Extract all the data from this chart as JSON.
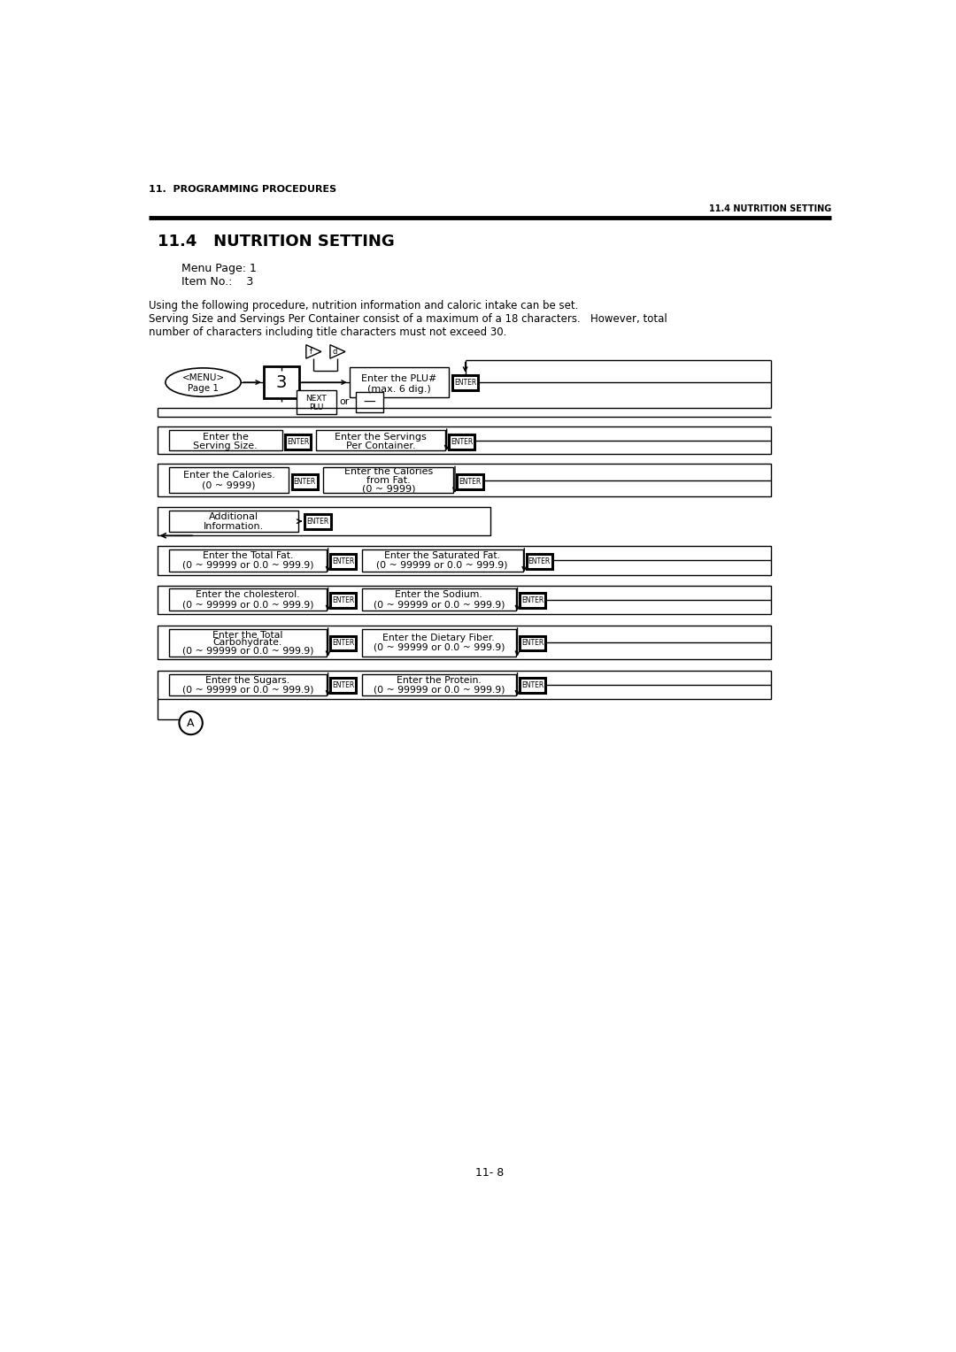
{
  "page_header_left": "11.  PROGRAMMING PROCEDURES",
  "page_header_right": "11.4 NUTRITION SETTING",
  "section_title": "11.4   NUTRITION SETTING",
  "menu_page": "Menu Page: 1",
  "item_no": "Item No.:    3",
  "description_line1": "Using the following procedure, nutrition information and caloric intake can be set.",
  "description_line2": "Serving Size and Servings Per Container consist of a maximum of a 18 characters.   However, total",
  "description_line3": "number of characters including title characters must not exceed 30.",
  "page_number": "11- 8",
  "bg_color": "#ffffff",
  "text_color": "#000000"
}
